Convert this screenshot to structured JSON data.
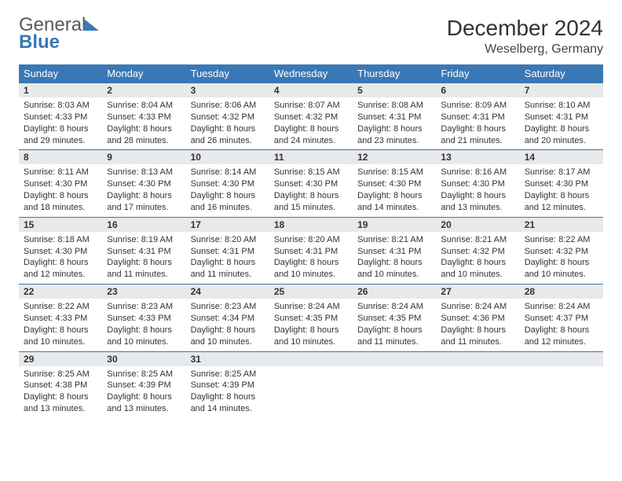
{
  "logo": {
    "word1": "General",
    "word2": "Blue"
  },
  "title": "December 2024",
  "location": "Weselberg, Germany",
  "day_headers": [
    "Sunday",
    "Monday",
    "Tuesday",
    "Wednesday",
    "Thursday",
    "Friday",
    "Saturday"
  ],
  "colors": {
    "header_bg": "#3a78b5",
    "header_text": "#ffffff",
    "daynum_bg": "#e8e9ea",
    "border": "#3a78b5",
    "text": "#333333",
    "logo_gray": "#555b61",
    "logo_blue": "#3a78b5"
  },
  "weeks": [
    [
      {
        "num": "1",
        "sunrise": "Sunrise: 8:03 AM",
        "sunset": "Sunset: 4:33 PM",
        "day1": "Daylight: 8 hours",
        "day2": "and 29 minutes."
      },
      {
        "num": "2",
        "sunrise": "Sunrise: 8:04 AM",
        "sunset": "Sunset: 4:33 PM",
        "day1": "Daylight: 8 hours",
        "day2": "and 28 minutes."
      },
      {
        "num": "3",
        "sunrise": "Sunrise: 8:06 AM",
        "sunset": "Sunset: 4:32 PM",
        "day1": "Daylight: 8 hours",
        "day2": "and 26 minutes."
      },
      {
        "num": "4",
        "sunrise": "Sunrise: 8:07 AM",
        "sunset": "Sunset: 4:32 PM",
        "day1": "Daylight: 8 hours",
        "day2": "and 24 minutes."
      },
      {
        "num": "5",
        "sunrise": "Sunrise: 8:08 AM",
        "sunset": "Sunset: 4:31 PM",
        "day1": "Daylight: 8 hours",
        "day2": "and 23 minutes."
      },
      {
        "num": "6",
        "sunrise": "Sunrise: 8:09 AM",
        "sunset": "Sunset: 4:31 PM",
        "day1": "Daylight: 8 hours",
        "day2": "and 21 minutes."
      },
      {
        "num": "7",
        "sunrise": "Sunrise: 8:10 AM",
        "sunset": "Sunset: 4:31 PM",
        "day1": "Daylight: 8 hours",
        "day2": "and 20 minutes."
      }
    ],
    [
      {
        "num": "8",
        "sunrise": "Sunrise: 8:11 AM",
        "sunset": "Sunset: 4:30 PM",
        "day1": "Daylight: 8 hours",
        "day2": "and 18 minutes."
      },
      {
        "num": "9",
        "sunrise": "Sunrise: 8:13 AM",
        "sunset": "Sunset: 4:30 PM",
        "day1": "Daylight: 8 hours",
        "day2": "and 17 minutes."
      },
      {
        "num": "10",
        "sunrise": "Sunrise: 8:14 AM",
        "sunset": "Sunset: 4:30 PM",
        "day1": "Daylight: 8 hours",
        "day2": "and 16 minutes."
      },
      {
        "num": "11",
        "sunrise": "Sunrise: 8:15 AM",
        "sunset": "Sunset: 4:30 PM",
        "day1": "Daylight: 8 hours",
        "day2": "and 15 minutes."
      },
      {
        "num": "12",
        "sunrise": "Sunrise: 8:15 AM",
        "sunset": "Sunset: 4:30 PM",
        "day1": "Daylight: 8 hours",
        "day2": "and 14 minutes."
      },
      {
        "num": "13",
        "sunrise": "Sunrise: 8:16 AM",
        "sunset": "Sunset: 4:30 PM",
        "day1": "Daylight: 8 hours",
        "day2": "and 13 minutes."
      },
      {
        "num": "14",
        "sunrise": "Sunrise: 8:17 AM",
        "sunset": "Sunset: 4:30 PM",
        "day1": "Daylight: 8 hours",
        "day2": "and 12 minutes."
      }
    ],
    [
      {
        "num": "15",
        "sunrise": "Sunrise: 8:18 AM",
        "sunset": "Sunset: 4:30 PM",
        "day1": "Daylight: 8 hours",
        "day2": "and 12 minutes."
      },
      {
        "num": "16",
        "sunrise": "Sunrise: 8:19 AM",
        "sunset": "Sunset: 4:31 PM",
        "day1": "Daylight: 8 hours",
        "day2": "and 11 minutes."
      },
      {
        "num": "17",
        "sunrise": "Sunrise: 8:20 AM",
        "sunset": "Sunset: 4:31 PM",
        "day1": "Daylight: 8 hours",
        "day2": "and 11 minutes."
      },
      {
        "num": "18",
        "sunrise": "Sunrise: 8:20 AM",
        "sunset": "Sunset: 4:31 PM",
        "day1": "Daylight: 8 hours",
        "day2": "and 10 minutes."
      },
      {
        "num": "19",
        "sunrise": "Sunrise: 8:21 AM",
        "sunset": "Sunset: 4:31 PM",
        "day1": "Daylight: 8 hours",
        "day2": "and 10 minutes."
      },
      {
        "num": "20",
        "sunrise": "Sunrise: 8:21 AM",
        "sunset": "Sunset: 4:32 PM",
        "day1": "Daylight: 8 hours",
        "day2": "and 10 minutes."
      },
      {
        "num": "21",
        "sunrise": "Sunrise: 8:22 AM",
        "sunset": "Sunset: 4:32 PM",
        "day1": "Daylight: 8 hours",
        "day2": "and 10 minutes."
      }
    ],
    [
      {
        "num": "22",
        "sunrise": "Sunrise: 8:22 AM",
        "sunset": "Sunset: 4:33 PM",
        "day1": "Daylight: 8 hours",
        "day2": "and 10 minutes."
      },
      {
        "num": "23",
        "sunrise": "Sunrise: 8:23 AM",
        "sunset": "Sunset: 4:33 PM",
        "day1": "Daylight: 8 hours",
        "day2": "and 10 minutes."
      },
      {
        "num": "24",
        "sunrise": "Sunrise: 8:23 AM",
        "sunset": "Sunset: 4:34 PM",
        "day1": "Daylight: 8 hours",
        "day2": "and 10 minutes."
      },
      {
        "num": "25",
        "sunrise": "Sunrise: 8:24 AM",
        "sunset": "Sunset: 4:35 PM",
        "day1": "Daylight: 8 hours",
        "day2": "and 10 minutes."
      },
      {
        "num": "26",
        "sunrise": "Sunrise: 8:24 AM",
        "sunset": "Sunset: 4:35 PM",
        "day1": "Daylight: 8 hours",
        "day2": "and 11 minutes."
      },
      {
        "num": "27",
        "sunrise": "Sunrise: 8:24 AM",
        "sunset": "Sunset: 4:36 PM",
        "day1": "Daylight: 8 hours",
        "day2": "and 11 minutes."
      },
      {
        "num": "28",
        "sunrise": "Sunrise: 8:24 AM",
        "sunset": "Sunset: 4:37 PM",
        "day1": "Daylight: 8 hours",
        "day2": "and 12 minutes."
      }
    ],
    [
      {
        "num": "29",
        "sunrise": "Sunrise: 8:25 AM",
        "sunset": "Sunset: 4:38 PM",
        "day1": "Daylight: 8 hours",
        "day2": "and 13 minutes."
      },
      {
        "num": "30",
        "sunrise": "Sunrise: 8:25 AM",
        "sunset": "Sunset: 4:39 PM",
        "day1": "Daylight: 8 hours",
        "day2": "and 13 minutes."
      },
      {
        "num": "31",
        "sunrise": "Sunrise: 8:25 AM",
        "sunset": "Sunset: 4:39 PM",
        "day1": "Daylight: 8 hours",
        "day2": "and 14 minutes."
      },
      null,
      null,
      null,
      null
    ]
  ]
}
